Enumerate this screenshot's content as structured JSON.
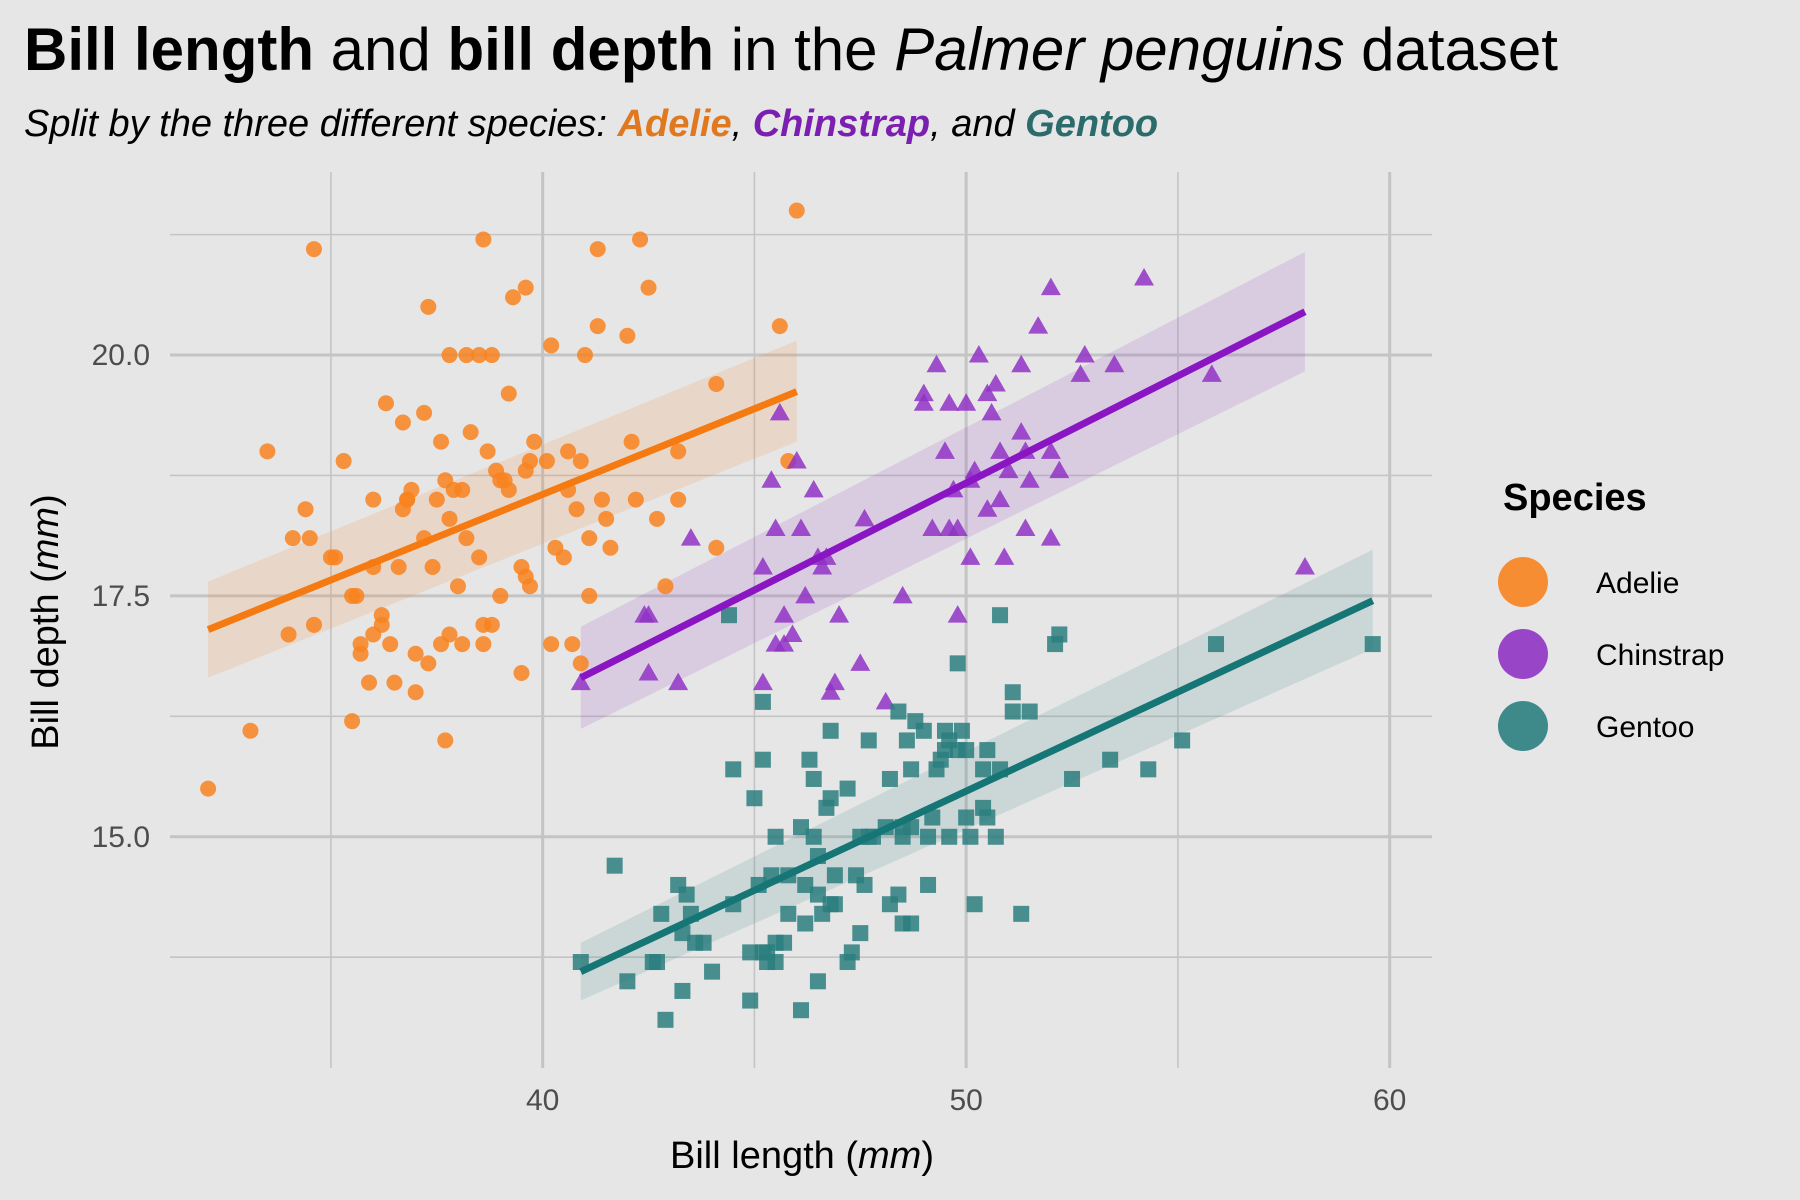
{
  "title": {
    "part1": "Bill length",
    "part2": " and ",
    "part3": "bill depth",
    "part4": " in the ",
    "part5": "Palmer penguins",
    "part6": " dataset"
  },
  "subtitle": {
    "prefix": "Split by the three different species: ",
    "sep1": ", ",
    "sep2": ", and "
  },
  "chart_data": {
    "type": "scatter",
    "xlabel": "Bill length",
    "xunit": "mm",
    "ylabel": "Bill depth",
    "yunit": "mm",
    "xlim": [
      31.2,
      61
    ],
    "ylim": [
      12.6,
      21.9
    ],
    "xticks": [
      40,
      50,
      60
    ],
    "yticks": [
      15.0,
      17.5,
      20.0
    ],
    "ytick_labels": [
      "15.0",
      "17.5",
      "20.0"
    ],
    "grid": true,
    "legend_title": "Species",
    "legend_position": "right",
    "series": [
      {
        "name": "Adelie",
        "color": "#f8831f",
        "line_color": "#f57a12",
        "marker": "circle",
        "fit": {
          "x": [
            32.1,
            46.0
          ],
          "y": [
            17.15,
            19.62
          ],
          "band_x": [
            32.1,
            46.0
          ],
          "band_lo_x0": 16.65,
          "band_hi_x0": 17.65,
          "band_lo_x1": 19.1,
          "band_hi_x1": 20.15
        },
        "points": [
          [
            32.1,
            15.5
          ],
          [
            33.1,
            16.1
          ],
          [
            33.5,
            19.0
          ],
          [
            34.0,
            17.1
          ],
          [
            34.1,
            18.1
          ],
          [
            34.4,
            18.4
          ],
          [
            34.5,
            18.1
          ],
          [
            34.6,
            21.1
          ],
          [
            34.6,
            17.2
          ],
          [
            35.0,
            17.9
          ],
          [
            35.1,
            17.9
          ],
          [
            35.3,
            18.9
          ],
          [
            35.5,
            16.2
          ],
          [
            35.5,
            17.5
          ],
          [
            35.6,
            17.5
          ],
          [
            35.7,
            16.9
          ],
          [
            35.7,
            17.0
          ],
          [
            35.9,
            16.6
          ],
          [
            36.0,
            17.1
          ],
          [
            36.0,
            17.8
          ],
          [
            36.0,
            18.5
          ],
          [
            36.2,
            17.3
          ],
          [
            36.2,
            17.2
          ],
          [
            36.3,
            19.5
          ],
          [
            36.4,
            17.0
          ],
          [
            36.5,
            16.6
          ],
          [
            36.6,
            17.8
          ],
          [
            36.7,
            18.4
          ],
          [
            36.7,
            19.3
          ],
          [
            36.8,
            18.5
          ],
          [
            36.9,
            18.6
          ],
          [
            37.0,
            16.9
          ],
          [
            37.0,
            16.5
          ],
          [
            37.2,
            18.1
          ],
          [
            37.3,
            20.5
          ],
          [
            37.3,
            16.8
          ],
          [
            37.4,
            17.8
          ],
          [
            37.5,
            18.5
          ],
          [
            37.6,
            17.0
          ],
          [
            37.6,
            19.1
          ],
          [
            37.7,
            18.7
          ],
          [
            37.7,
            16.0
          ],
          [
            37.8,
            17.1
          ],
          [
            37.8,
            18.3
          ],
          [
            37.8,
            20.0
          ],
          [
            37.9,
            18.6
          ],
          [
            38.1,
            18.6
          ],
          [
            38.1,
            17.0
          ],
          [
            38.2,
            18.1
          ],
          [
            38.2,
            20.0
          ],
          [
            38.3,
            19.2
          ],
          [
            38.5,
            17.9
          ],
          [
            38.6,
            21.2
          ],
          [
            38.6,
            17.2
          ],
          [
            38.6,
            17.0
          ],
          [
            38.7,
            19.0
          ],
          [
            38.8,
            17.2
          ],
          [
            38.8,
            20.0
          ],
          [
            38.9,
            18.8
          ],
          [
            39.0,
            18.7
          ],
          [
            39.1,
            18.7
          ],
          [
            39.2,
            19.6
          ],
          [
            39.2,
            18.6
          ],
          [
            39.3,
            20.6
          ],
          [
            39.5,
            16.7
          ],
          [
            39.5,
            17.8
          ],
          [
            39.6,
            17.7
          ],
          [
            39.6,
            18.8
          ],
          [
            39.7,
            18.9
          ],
          [
            39.7,
            17.6
          ],
          [
            39.8,
            19.1
          ],
          [
            40.1,
            18.9
          ],
          [
            40.2,
            20.1
          ],
          [
            40.2,
            17.0
          ],
          [
            40.3,
            18.0
          ],
          [
            40.5,
            17.9
          ],
          [
            40.6,
            18.6
          ],
          [
            40.6,
            19.0
          ],
          [
            40.7,
            17.0
          ],
          [
            40.8,
            18.4
          ],
          [
            40.9,
            18.9
          ],
          [
            41.0,
            20.0
          ],
          [
            41.1,
            18.1
          ],
          [
            41.1,
            17.5
          ],
          [
            41.3,
            21.1
          ],
          [
            41.4,
            18.5
          ],
          [
            41.5,
            18.3
          ],
          [
            41.6,
            18.0
          ],
          [
            42.0,
            20.2
          ],
          [
            42.1,
            19.1
          ],
          [
            42.2,
            18.5
          ],
          [
            42.3,
            21.2
          ],
          [
            42.5,
            20.7
          ],
          [
            42.7,
            18.3
          ],
          [
            42.9,
            17.6
          ],
          [
            43.2,
            19.0
          ],
          [
            43.2,
            18.5
          ],
          [
            44.1,
            19.7
          ],
          [
            44.1,
            18.0
          ],
          [
            45.6,
            20.3
          ],
          [
            45.8,
            18.9
          ],
          [
            46.0,
            21.5
          ],
          [
            39.6,
            20.7
          ],
          [
            38.5,
            20.0
          ],
          [
            36.8,
            18.5
          ],
          [
            40.9,
            16.8
          ],
          [
            41.3,
            20.3
          ],
          [
            37.2,
            19.4
          ],
          [
            38.0,
            17.6
          ],
          [
            39.0,
            17.5
          ]
        ]
      },
      {
        "name": "Chinstrap",
        "color": "#9033c4",
        "line_color": "#8a16c3",
        "marker": "triangle",
        "fit": {
          "x": [
            40.9,
            58.0
          ],
          "y": [
            16.65,
            20.45
          ],
          "band_x": [
            40.9,
            58.0
          ],
          "band_lo_x0": 16.12,
          "band_hi_x0": 17.18,
          "band_lo_x1": 19.83,
          "band_hi_x1": 21.07
        },
        "points": [
          [
            40.9,
            16.6
          ],
          [
            42.4,
            17.3
          ],
          [
            42.5,
            17.3
          ],
          [
            42.5,
            16.7
          ],
          [
            43.2,
            16.6
          ],
          [
            43.5,
            18.1
          ],
          [
            45.2,
            17.8
          ],
          [
            45.2,
            16.6
          ],
          [
            45.4,
            18.7
          ],
          [
            45.5,
            17.0
          ],
          [
            45.6,
            19.4
          ],
          [
            45.7,
            17.3
          ],
          [
            45.7,
            17.0
          ],
          [
            45.9,
            17.1
          ],
          [
            46.0,
            18.9
          ],
          [
            46.1,
            18.2
          ],
          [
            46.2,
            17.5
          ],
          [
            46.4,
            18.6
          ],
          [
            46.5,
            17.9
          ],
          [
            46.6,
            17.8
          ],
          [
            46.7,
            17.9
          ],
          [
            46.8,
            16.5
          ],
          [
            46.9,
            16.6
          ],
          [
            47.0,
            17.3
          ],
          [
            47.5,
            16.8
          ],
          [
            47.6,
            18.3
          ],
          [
            48.1,
            16.4
          ],
          [
            48.5,
            17.5
          ],
          [
            49.0,
            19.5
          ],
          [
            49.0,
            19.6
          ],
          [
            49.2,
            18.2
          ],
          [
            49.3,
            19.9
          ],
          [
            49.5,
            19.0
          ],
          [
            49.6,
            18.2
          ],
          [
            49.7,
            18.6
          ],
          [
            49.8,
            17.3
          ],
          [
            50.0,
            19.5
          ],
          [
            50.1,
            17.9
          ],
          [
            50.2,
            18.8
          ],
          [
            50.3,
            20.0
          ],
          [
            50.5,
            18.4
          ],
          [
            50.5,
            19.6
          ],
          [
            50.6,
            19.4
          ],
          [
            50.7,
            19.7
          ],
          [
            50.8,
            18.5
          ],
          [
            50.8,
            19.0
          ],
          [
            50.9,
            17.9
          ],
          [
            51.0,
            18.8
          ],
          [
            51.3,
            19.2
          ],
          [
            51.3,
            19.9
          ],
          [
            51.4,
            19.0
          ],
          [
            51.5,
            18.7
          ],
          [
            51.7,
            20.3
          ],
          [
            52.0,
            19.0
          ],
          [
            52.0,
            18.1
          ],
          [
            52.0,
            20.7
          ],
          [
            52.2,
            18.8
          ],
          [
            52.7,
            19.8
          ],
          [
            52.8,
            20.0
          ],
          [
            53.5,
            19.9
          ],
          [
            54.2,
            20.8
          ],
          [
            55.8,
            19.8
          ],
          [
            58.0,
            17.8
          ],
          [
            49.6,
            19.5
          ],
          [
            50.1,
            18.7
          ],
          [
            51.4,
            18.2
          ],
          [
            45.5,
            18.2
          ],
          [
            49.8,
            18.2
          ]
        ]
      },
      {
        "name": "Gentoo",
        "color": "#2b7e7e",
        "line_color": "#167575",
        "marker": "square",
        "fit": {
          "x": [
            40.9,
            59.6
          ],
          "y": [
            13.6,
            17.45
          ],
          "band_x": [
            40.9,
            59.6
          ],
          "band_lo_x0": 13.3,
          "band_hi_x0": 13.9,
          "band_lo_x1": 16.95,
          "band_hi_x1": 17.98
        },
        "points": [
          [
            40.9,
            13.7
          ],
          [
            41.7,
            14.7
          ],
          [
            42.0,
            13.5
          ],
          [
            42.6,
            13.7
          ],
          [
            42.7,
            13.7
          ],
          [
            42.8,
            14.2
          ],
          [
            42.9,
            13.1
          ],
          [
            43.2,
            14.5
          ],
          [
            43.3,
            13.4
          ],
          [
            43.3,
            14.0
          ],
          [
            43.4,
            14.4
          ],
          [
            43.5,
            14.2
          ],
          [
            43.6,
            13.9
          ],
          [
            43.8,
            13.9
          ],
          [
            44.0,
            13.6
          ],
          [
            44.4,
            17.3
          ],
          [
            44.5,
            14.3
          ],
          [
            44.5,
            15.7
          ],
          [
            44.9,
            13.3
          ],
          [
            44.9,
            13.8
          ],
          [
            45.0,
            15.4
          ],
          [
            45.1,
            14.5
          ],
          [
            45.2,
            13.8
          ],
          [
            45.2,
            15.8
          ],
          [
            45.2,
            16.4
          ],
          [
            45.3,
            13.7
          ],
          [
            45.3,
            13.8
          ],
          [
            45.4,
            14.6
          ],
          [
            45.5,
            13.7
          ],
          [
            45.5,
            13.9
          ],
          [
            45.5,
            15.0
          ],
          [
            45.7,
            13.9
          ],
          [
            45.8,
            14.2
          ],
          [
            45.8,
            14.6
          ],
          [
            46.1,
            13.2
          ],
          [
            46.1,
            15.1
          ],
          [
            46.2,
            14.1
          ],
          [
            46.2,
            14.5
          ],
          [
            46.3,
            15.8
          ],
          [
            46.4,
            15.0
          ],
          [
            46.4,
            15.6
          ],
          [
            46.5,
            13.5
          ],
          [
            46.5,
            14.4
          ],
          [
            46.5,
            14.8
          ],
          [
            46.6,
            14.2
          ],
          [
            46.7,
            15.3
          ],
          [
            46.8,
            14.3
          ],
          [
            46.8,
            15.4
          ],
          [
            46.8,
            16.1
          ],
          [
            46.9,
            14.6
          ],
          [
            47.2,
            13.7
          ],
          [
            47.2,
            15.5
          ],
          [
            47.3,
            13.8
          ],
          [
            47.4,
            14.6
          ],
          [
            47.5,
            14.0
          ],
          [
            47.5,
            15.0
          ],
          [
            47.6,
            14.5
          ],
          [
            47.7,
            15.0
          ],
          [
            47.8,
            15.0
          ],
          [
            48.1,
            15.1
          ],
          [
            48.2,
            14.3
          ],
          [
            48.2,
            15.6
          ],
          [
            48.4,
            14.4
          ],
          [
            48.4,
            16.3
          ],
          [
            48.5,
            14.1
          ],
          [
            48.5,
            15.0
          ],
          [
            48.6,
            16.0
          ],
          [
            48.7,
            14.1
          ],
          [
            48.7,
            15.1
          ],
          [
            48.7,
            15.7
          ],
          [
            48.8,
            16.2
          ],
          [
            49.0,
            16.1
          ],
          [
            49.1,
            14.5
          ],
          [
            49.1,
            15.0
          ],
          [
            49.2,
            15.2
          ],
          [
            49.3,
            15.7
          ],
          [
            49.4,
            15.8
          ],
          [
            49.5,
            15.9
          ],
          [
            49.5,
            16.1
          ],
          [
            49.6,
            15.0
          ],
          [
            49.6,
            16.0
          ],
          [
            49.8,
            15.9
          ],
          [
            49.8,
            16.8
          ],
          [
            49.9,
            16.1
          ],
          [
            50.0,
            15.2
          ],
          [
            50.0,
            15.9
          ],
          [
            50.1,
            15.0
          ],
          [
            50.2,
            14.3
          ],
          [
            50.4,
            15.3
          ],
          [
            50.4,
            15.7
          ],
          [
            50.5,
            15.2
          ],
          [
            50.5,
            15.9
          ],
          [
            50.7,
            15.0
          ],
          [
            50.8,
            15.7
          ],
          [
            50.8,
            17.3
          ],
          [
            51.1,
            16.3
          ],
          [
            51.1,
            16.5
          ],
          [
            51.3,
            14.2
          ],
          [
            51.5,
            16.3
          ],
          [
            52.1,
            17.0
          ],
          [
            52.2,
            17.1
          ],
          [
            52.5,
            15.6
          ],
          [
            53.4,
            15.8
          ],
          [
            54.3,
            15.7
          ],
          [
            55.1,
            16.0
          ],
          [
            55.9,
            17.0
          ],
          [
            59.6,
            17.0
          ],
          [
            47.7,
            16.0
          ],
          [
            48.5,
            15.1
          ],
          [
            46.9,
            14.3
          ]
        ]
      }
    ]
  }
}
